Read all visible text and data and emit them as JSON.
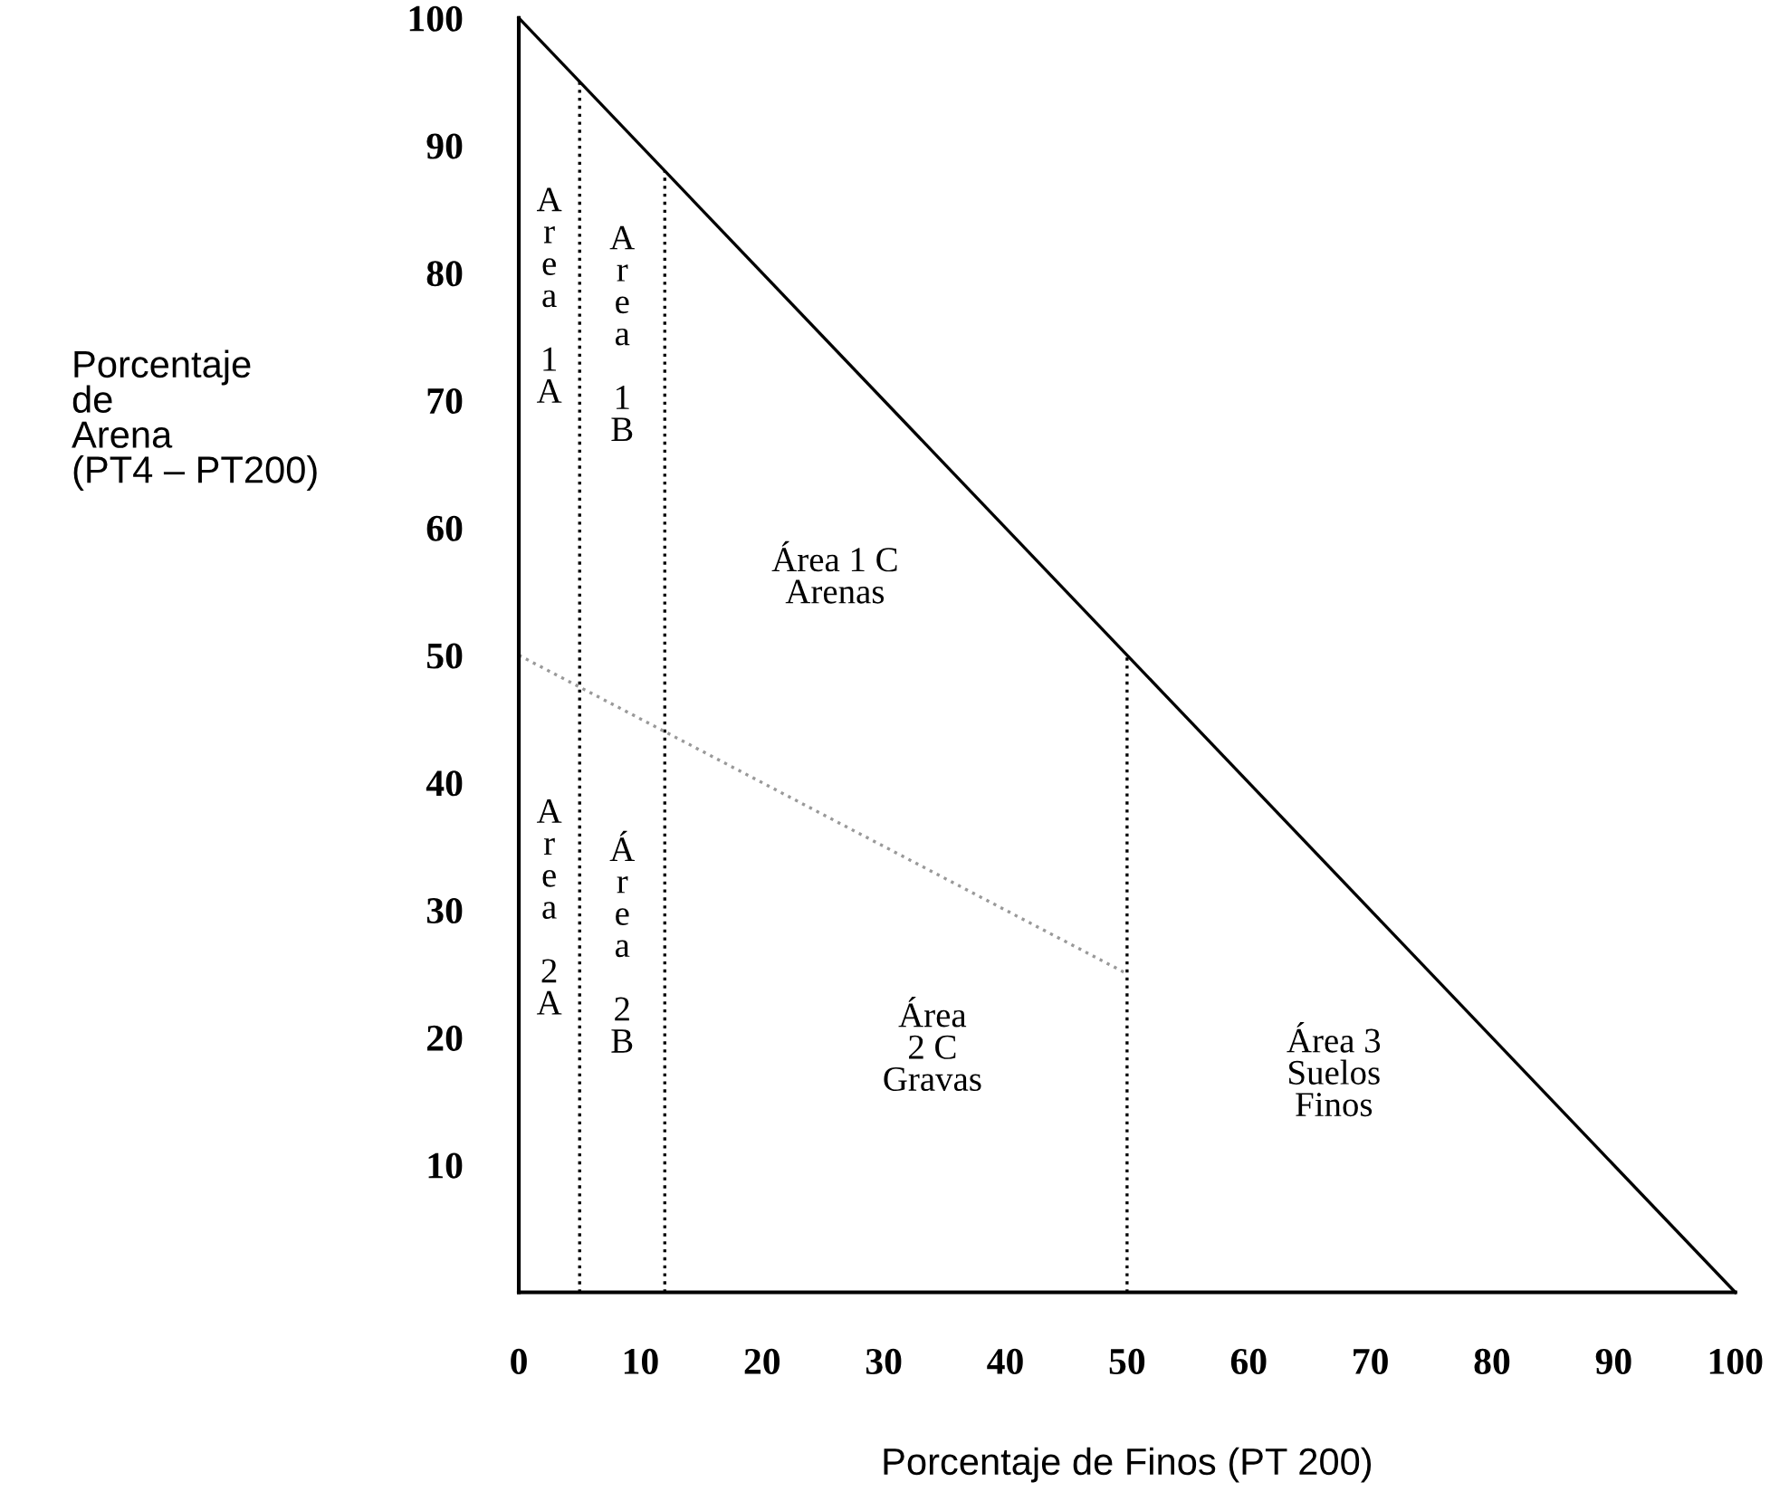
{
  "chart_data": {
    "type": "line",
    "xlabel": "Porcentaje de Finos (PT 200)",
    "ylabel": "Porcentaje\nde\nArena\n(PT4 – PT200)",
    "xlim": [
      0,
      100
    ],
    "ylim": [
      0,
      100
    ],
    "xticks": [
      0,
      10,
      20,
      30,
      40,
      50,
      60,
      70,
      80,
      90,
      100
    ],
    "yticks": [
      10,
      20,
      30,
      40,
      50,
      60,
      70,
      80,
      90,
      100
    ],
    "grid": false,
    "marker": "none",
    "series": [
      {
        "color": "#000000",
        "line_style": "solid",
        "x": [
          0,
          100
        ],
        "values": [
          100,
          0
        ]
      },
      {
        "color": "#000000",
        "line_style": "dotted",
        "x": [
          5,
          5
        ],
        "values": [
          0,
          95
        ]
      },
      {
        "color": "#000000",
        "line_style": "dotted",
        "x": [
          12,
          12
        ],
        "values": [
          0,
          88
        ]
      },
      {
        "color": "#000000",
        "line_style": "dotted",
        "x": [
          50,
          50
        ],
        "values": [
          0,
          50
        ]
      },
      {
        "color": "#999999",
        "line_style": "dotted",
        "x": [
          0,
          50
        ],
        "values": [
          50,
          25
        ]
      }
    ],
    "annotations": [
      "A\nr\ne\na\n\n1\nA",
      "A\nr\ne\na\n\n1\nB",
      "Área 1 C\nArenas",
      "A\nr\ne\na\n\n2\nA",
      "Á\nr\ne\na\n\n2\nB",
      "Área\n2 C\nGravas",
      "Área 3\nSuelos\nFinos"
    ]
  }
}
